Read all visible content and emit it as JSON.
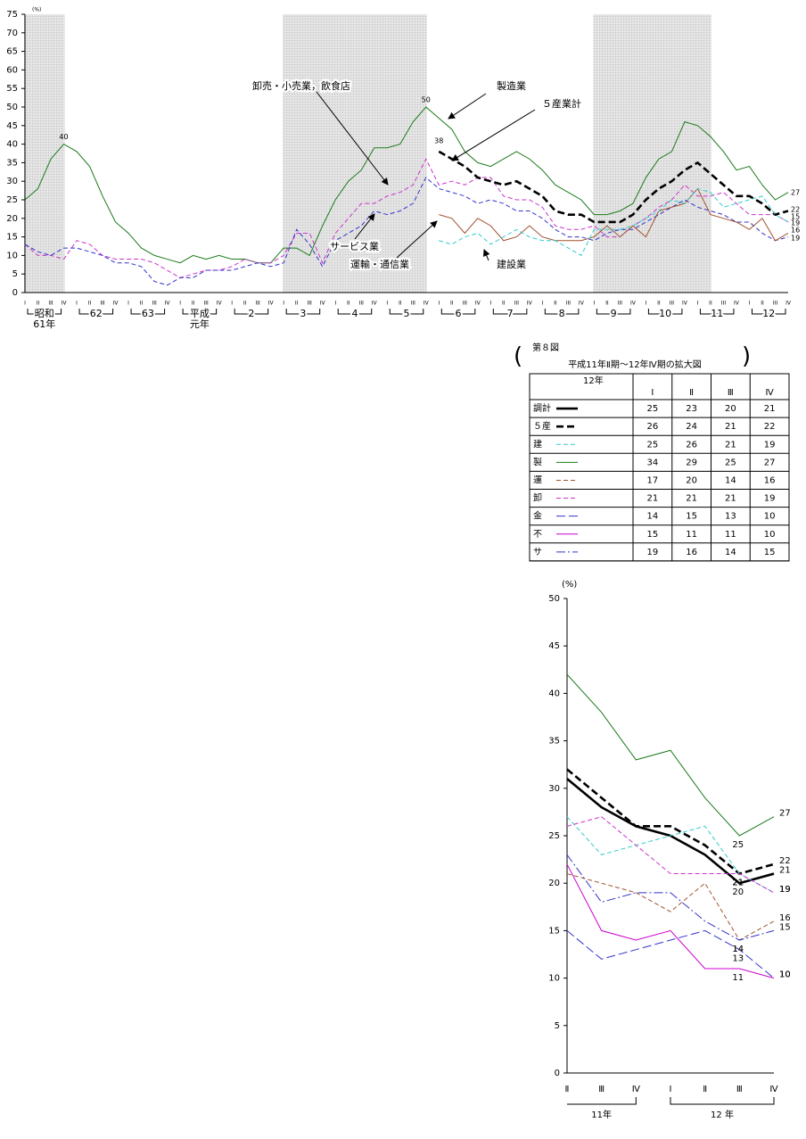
{
  "chart_data": [
    {
      "type": "line",
      "ylabel": "(%)",
      "ylim": [
        0,
        75
      ],
      "yticks": [
        0,
        5,
        10,
        15,
        20,
        25,
        30,
        35,
        40,
        45,
        50,
        55,
        60,
        65,
        70,
        75
      ],
      "categories": [
        "I",
        "II",
        "III",
        "IV",
        "I",
        "II",
        "III",
        "IV",
        "I",
        "II",
        "III",
        "IV",
        "I",
        "II",
        "III",
        "IV",
        "I",
        "II",
        "III",
        "IV",
        "I",
        "II",
        "III",
        "IV",
        "I",
        "II",
        "III",
        "IV",
        "I",
        "II",
        "III",
        "IV",
        "I",
        "II",
        "III",
        "IV",
        "I",
        "II",
        "III",
        "IV",
        "I",
        "II",
        "III",
        "IV",
        "I",
        "II",
        "III",
        "IV",
        "I",
        "II",
        "III",
        "IV",
        "I",
        "II",
        "III",
        "IV",
        "I",
        "II",
        "III",
        "IV"
      ],
      "year_labels": [
        [
          "昭和",
          "61年"
        ],
        [
          "62"
        ],
        [
          "63"
        ],
        [
          "平成",
          "元年"
        ],
        [
          "2"
        ],
        [
          "3"
        ],
        [
          "4"
        ],
        [
          "5"
        ],
        [
          "6"
        ],
        [
          "7"
        ],
        [
          "8"
        ],
        [
          "9"
        ],
        [
          "10"
        ],
        [
          "11"
        ],
        [
          "12"
        ]
      ],
      "series": [
        {
          "name": "製造業",
          "color": "#1a7a1a",
          "style": "solid",
          "values": [
            25,
            28,
            36,
            40,
            38,
            34,
            26,
            19,
            16,
            12,
            10,
            9,
            8,
            10,
            9,
            10,
            9,
            9,
            8,
            8,
            12,
            12,
            10,
            18,
            25,
            30,
            33,
            39,
            39,
            40,
            46,
            50,
            47,
            44,
            38,
            35,
            34,
            36,
            38,
            36,
            33,
            29,
            27,
            25,
            21,
            21,
            22,
            24,
            31,
            36,
            38,
            46,
            45,
            42,
            38,
            33,
            34,
            29,
            25,
            27
          ]
        },
        {
          "name": "卸売・小売業，飲食店",
          "color": "#cc33cc",
          "style": "dashed",
          "values": [
            13,
            10,
            10,
            9,
            14,
            13,
            10,
            9,
            9,
            9,
            8,
            6,
            4,
            5,
            6,
            6,
            7,
            9,
            8,
            8,
            10,
            16,
            16,
            8,
            16,
            20,
            24,
            24,
            26,
            27,
            29,
            36,
            29,
            30,
            29,
            31,
            31,
            26,
            25,
            25,
            23,
            18,
            17,
            17,
            18,
            15,
            15,
            18,
            20,
            23,
            25,
            29,
            26,
            26,
            27,
            24,
            21,
            21,
            21,
            19
          ]
        },
        {
          "name": "サービス業",
          "color": "#3333cc",
          "style": "dashed",
          "values": [
            13,
            11,
            10,
            12,
            12,
            11,
            10,
            8,
            8,
            7,
            3,
            2,
            4,
            4,
            6,
            6,
            6,
            7,
            8,
            7,
            8,
            17,
            13,
            7,
            14,
            16,
            18,
            22,
            21,
            22,
            24,
            31,
            28,
            27,
            26,
            24,
            25,
            24,
            22,
            22,
            20,
            17,
            15,
            15,
            14,
            16,
            17,
            17,
            19,
            21,
            23,
            25,
            23,
            22,
            21,
            19,
            19,
            16,
            14,
            15
          ]
        },
        {
          "name": "５産業計",
          "color": "#000000",
          "style": "bold-dashed",
          "values": [
            null,
            null,
            null,
            null,
            null,
            null,
            null,
            null,
            null,
            null,
            null,
            null,
            null,
            null,
            null,
            null,
            null,
            null,
            null,
            null,
            null,
            null,
            null,
            null,
            null,
            null,
            null,
            null,
            null,
            null,
            null,
            null,
            38,
            36,
            34,
            31,
            30,
            29,
            30,
            28,
            26,
            22,
            21,
            21,
            19,
            19,
            19,
            21,
            25,
            28,
            30,
            33,
            35,
            32,
            29,
            26,
            26,
            24,
            21,
            22
          ]
        },
        {
          "name": "運輸・通信業",
          "color": "#a0522d",
          "style": "solid",
          "values": [
            null,
            null,
            null,
            null,
            null,
            null,
            null,
            null,
            null,
            null,
            null,
            null,
            null,
            null,
            null,
            null,
            null,
            null,
            null,
            null,
            null,
            null,
            null,
            null,
            null,
            null,
            null,
            null,
            null,
            null,
            null,
            null,
            21,
            20,
            16,
            20,
            18,
            14,
            15,
            18,
            15,
            14,
            14,
            14,
            15,
            18,
            15,
            18,
            15,
            22,
            23,
            24,
            28,
            21,
            20,
            19,
            17,
            20,
            14,
            16
          ]
        },
        {
          "name": "建設業",
          "color": "#33cccc",
          "style": "dashed",
          "values": [
            null,
            null,
            null,
            null,
            null,
            null,
            null,
            null,
            null,
            null,
            null,
            null,
            null,
            null,
            null,
            null,
            null,
            null,
            null,
            null,
            null,
            null,
            null,
            null,
            null,
            null,
            null,
            null,
            null,
            null,
            null,
            null,
            14,
            13,
            15,
            16,
            13,
            15,
            17,
            15,
            14,
            14,
            12,
            10,
            17,
            17,
            17,
            18,
            20,
            22,
            25,
            24,
            28,
            27,
            23,
            24,
            25,
            26,
            21,
            19
          ]
        }
      ]
    },
    {
      "type": "line",
      "title": "第８図",
      "subtitle": "平成11年Ⅱ期～12年Ⅳ期の拡大図",
      "table_year": "12年",
      "ylabel": "(%)",
      "ylim": [
        0,
        50
      ],
      "yticks": [
        0,
        5,
        10,
        15,
        20,
        25,
        30,
        35,
        40,
        45,
        50
      ],
      "categories": [
        "Ⅱ",
        "Ⅲ",
        "Ⅳ",
        "Ⅰ",
        "Ⅱ",
        "Ⅲ",
        "Ⅳ"
      ],
      "year_groups": [
        "11年",
        "12 年"
      ],
      "series": [
        {
          "name": "調計",
          "color": "#000000",
          "style": "bold",
          "values": [
            31,
            28,
            26,
            25,
            23,
            20,
            21
          ]
        },
        {
          "name": "５産",
          "color": "#000000",
          "style": "bold-dashed",
          "values": [
            32,
            29,
            26,
            26,
            24,
            21,
            22
          ]
        },
        {
          "name": "建",
          "color": "#33cccc",
          "style": "dashed",
          "values": [
            27,
            23,
            24,
            25,
            26,
            21,
            19
          ]
        },
        {
          "name": "製",
          "color": "#1a7a1a",
          "style": "solid",
          "values": [
            42,
            38,
            33,
            34,
            29,
            25,
            27
          ]
        },
        {
          "name": "運",
          "color": "#a0522d",
          "style": "dashed",
          "values": [
            21,
            20,
            19,
            17,
            20,
            14,
            16
          ]
        },
        {
          "name": "卸",
          "color": "#cc33cc",
          "style": "dashed",
          "values": [
            26,
            27,
            24,
            21,
            21,
            21,
            19
          ]
        },
        {
          "name": "金",
          "color": "#3333cc",
          "style": "longdash",
          "values": [
            15,
            12,
            13,
            14,
            15,
            13,
            10
          ]
        },
        {
          "name": "不",
          "color": "#cc00cc",
          "style": "solid",
          "values": [
            22,
            15,
            14,
            15,
            11,
            11,
            10
          ]
        },
        {
          "name": "サ",
          "color": "#3333cc",
          "style": "dashdot",
          "values": [
            23,
            18,
            19,
            19,
            16,
            14,
            15
          ]
        }
      ]
    }
  ]
}
